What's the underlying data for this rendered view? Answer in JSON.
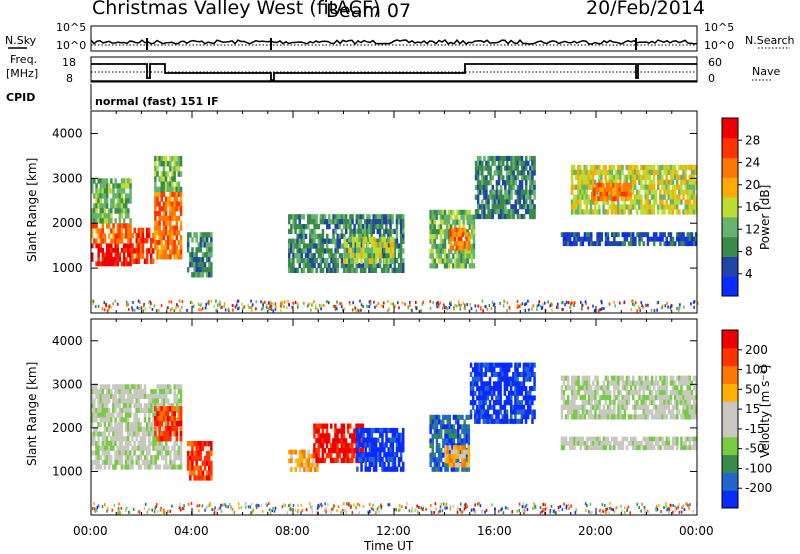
{
  "header": {
    "radar": "Christmas Valley West (fitACF)",
    "beam": "Beam 07",
    "date": "20/Feb/2014",
    "mode": "normal (fast) 151 IF"
  },
  "left_labels": {
    "nsky": "N.Sky",
    "freq_line1": "Freq.",
    "freq_line2": "[MHz]",
    "cpid": "CPID"
  },
  "right_labels": {
    "nsearch": "N.Search",
    "nave": "Nave"
  },
  "strip_ticks": {
    "noise_left": [
      "10^5",
      "10^0"
    ],
    "noise_right": [
      "10^5",
      "10^0"
    ],
    "freq_left": [
      "18",
      "8"
    ],
    "nave_right": [
      "60",
      "0"
    ]
  },
  "colors": {
    "power_scale": [
      "#0a2bff",
      "#2244aa",
      "#3a8a4c",
      "#66b36b",
      "#bbdd33",
      "#ffaa00",
      "#ff7700",
      "#ff3300",
      "#ee0000"
    ],
    "velocity_scale": [
      "#0a2bff",
      "#2266cc",
      "#3a8a4c",
      "#77cc44",
      "#c8c8c0",
      "#c8c8c0",
      "#ffb000",
      "#ff7700",
      "#ff3300",
      "#ee0000"
    ],
    "ground_scatter": "#bebeb4"
  },
  "chart_data": [
    {
      "type": "heatmap",
      "panel": "power",
      "xlabel": "",
      "ylabel": "Slant Range [km]",
      "ylim": [
        0,
        4500
      ],
      "yticks": [
        "1000",
        "2000",
        "3000",
        "4000"
      ],
      "colorbar_label": "Power [dB]",
      "colorbar_ticks": [
        "28",
        "24",
        "20",
        "16",
        "12",
        "8",
        "4"
      ],
      "regions": [
        {
          "t0": 0.0,
          "t1": 1.6,
          "r0": 1050,
          "r1": 1550,
          "level": 8
        },
        {
          "t0": 0.0,
          "t1": 1.6,
          "r0": 1550,
          "r1": 2000,
          "level": 6
        },
        {
          "t0": 0.0,
          "t1": 1.6,
          "r0": 2000,
          "r1": 3000,
          "level": 3
        },
        {
          "t0": 1.6,
          "t1": 2.5,
          "r0": 1100,
          "r1": 1900,
          "level": 7
        },
        {
          "t0": 2.5,
          "t1": 3.6,
          "r0": 1200,
          "r1": 2700,
          "level": 6
        },
        {
          "t0": 2.5,
          "t1": 3.6,
          "r0": 2700,
          "r1": 3500,
          "level": 3
        },
        {
          "t0": 3.8,
          "t1": 4.8,
          "r0": 800,
          "r1": 1800,
          "level": 2
        },
        {
          "t0": 7.8,
          "t1": 12.4,
          "r0": 900,
          "r1": 2200,
          "level": 2
        },
        {
          "t0": 10.0,
          "t1": 12.0,
          "r0": 1100,
          "r1": 1700,
          "level": 4
        },
        {
          "t0": 13.4,
          "t1": 15.2,
          "r0": 1000,
          "r1": 2300,
          "level": 3
        },
        {
          "t0": 14.2,
          "t1": 15.0,
          "r0": 1400,
          "r1": 1900,
          "level": 6
        },
        {
          "t0": 15.2,
          "t1": 17.6,
          "r0": 2100,
          "r1": 3500,
          "level": 2
        },
        {
          "t0": 19.0,
          "t1": 24.0,
          "r0": 2200,
          "r1": 3300,
          "level": 4
        },
        {
          "t0": 19.8,
          "t1": 21.4,
          "r0": 2500,
          "r1": 2900,
          "level": 6
        },
        {
          "t0": 18.6,
          "t1": 24.0,
          "r0": 1500,
          "r1": 1800,
          "level": 1
        }
      ]
    },
    {
      "type": "heatmap",
      "panel": "velocity",
      "xlabel": "Time UT",
      "ylabel": "Slant Range [km]",
      "ylim": [
        0,
        4500
      ],
      "yticks": [
        "1000",
        "2000",
        "3000",
        "4000"
      ],
      "xticks": [
        "00:00",
        "04:00",
        "08:00",
        "12:00",
        "16:00",
        "20:00",
        "00:00"
      ],
      "xlim": [
        0,
        24
      ],
      "colorbar_label": "Velocity [m s⁻¹]",
      "colorbar_ticks": [
        "200",
        "100",
        "50",
        "15",
        "-15",
        "-50",
        "-100",
        "-200"
      ],
      "regions": [
        {
          "t0": 0.0,
          "t1": 3.6,
          "r0": 1050,
          "r1": 3000,
          "level": 4
        },
        {
          "t0": 2.5,
          "t1": 3.6,
          "r0": 1700,
          "r1": 2500,
          "level": 8
        },
        {
          "t0": 3.8,
          "t1": 4.8,
          "r0": 800,
          "r1": 1700,
          "level": 8
        },
        {
          "t0": 7.8,
          "t1": 9.0,
          "r0": 1000,
          "r1": 1500,
          "level": 6
        },
        {
          "t0": 8.8,
          "t1": 10.8,
          "r0": 1200,
          "r1": 2100,
          "level": 9
        },
        {
          "t0": 10.5,
          "t1": 12.4,
          "r0": 1000,
          "r1": 2000,
          "level": 0
        },
        {
          "t0": 13.4,
          "t1": 15.0,
          "r0": 1000,
          "r1": 2300,
          "level": 1
        },
        {
          "t0": 14.0,
          "t1": 15.0,
          "r0": 1100,
          "r1": 1600,
          "level": 6
        },
        {
          "t0": 15.0,
          "t1": 17.6,
          "r0": 2100,
          "r1": 3500,
          "level": 0
        },
        {
          "t0": 18.6,
          "t1": 24.0,
          "r0": 2200,
          "r1": 3200,
          "level": 4
        },
        {
          "t0": 18.6,
          "t1": 24.0,
          "r0": 1500,
          "r1": 1800,
          "level": 4
        }
      ]
    }
  ]
}
